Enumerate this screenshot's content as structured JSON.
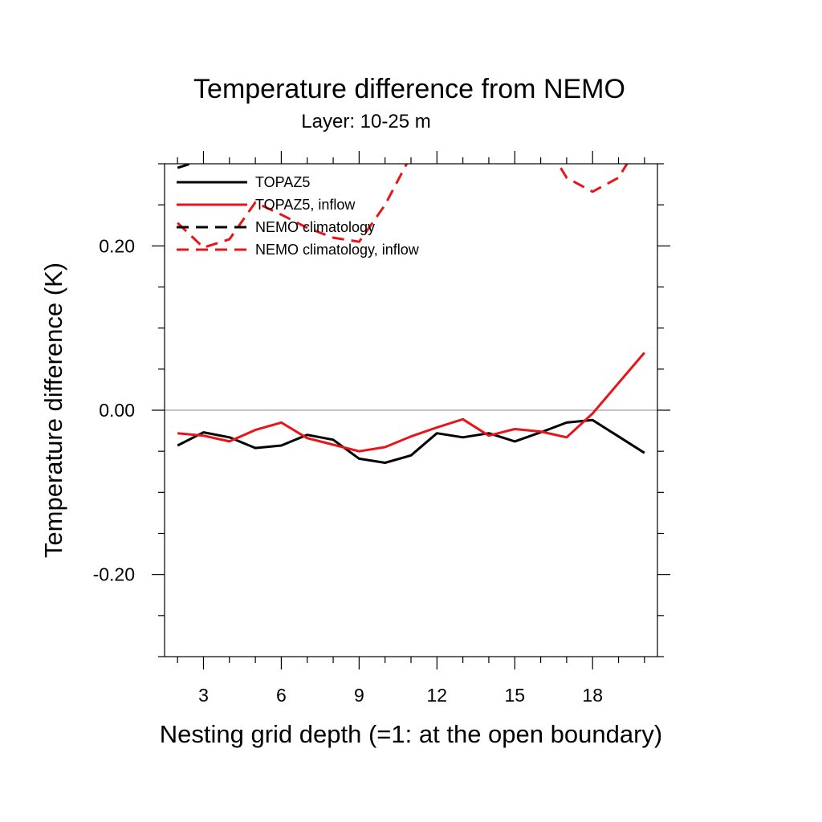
{
  "chart_data": {
    "type": "line",
    "title": "Temperature difference from NEMO",
    "subtitle": "Layer: 10-25 m",
    "xlabel": "Nesting grid depth (=1: at the open boundary)",
    "ylabel": "Temperature difference (K)",
    "xlim": [
      1.5,
      20.5
    ],
    "ylim": [
      -0.3,
      0.3
    ],
    "xticks": [
      3,
      6,
      9,
      12,
      15,
      18
    ],
    "xtick_labels": [
      "3",
      "6",
      "9",
      "12",
      "15",
      "18"
    ],
    "yticks": [
      0.2,
      0.0,
      -0.2
    ],
    "ytick_labels": [
      "0.20",
      "0.00",
      "-0.20"
    ],
    "zero_line": true,
    "legend_position": "top-left",
    "x": [
      2,
      3,
      4,
      5,
      6,
      7,
      8,
      9,
      10,
      11,
      12,
      13,
      14,
      15,
      16,
      17,
      18,
      19,
      20
    ],
    "series": [
      {
        "name": "TOPAZ5",
        "color": "#000000",
        "dash": "solid",
        "values": [
          -0.043,
          -0.027,
          -0.033,
          -0.046,
          -0.043,
          -0.03,
          -0.036,
          -0.059,
          -0.064,
          -0.055,
          -0.028,
          -0.033,
          -0.028,
          -0.038,
          -0.027,
          -0.015,
          -0.012,
          -0.032,
          -0.052
        ]
      },
      {
        "name": "TOPAZ5, inflow",
        "color": "#e8141a",
        "dash": "solid",
        "values": [
          -0.028,
          -0.031,
          -0.038,
          -0.024,
          -0.015,
          -0.034,
          -0.042,
          -0.05,
          -0.045,
          -0.032,
          -0.021,
          -0.011,
          -0.031,
          -0.023,
          -0.026,
          -0.033,
          -0.004,
          0.033,
          0.07
        ]
      },
      {
        "name": "NEMO climatology",
        "color": "#000000",
        "dash": "dashed",
        "values": [
          0.295,
          0.305,
          null,
          null,
          null,
          null,
          null,
          null,
          null,
          null,
          null,
          null,
          null,
          null,
          null,
          null,
          null,
          null,
          null
        ]
      },
      {
        "name": "NEMO climatology, inflow",
        "color": "#e8141a",
        "dash": "dashed",
        "values": [
          0.228,
          0.198,
          0.208,
          0.253,
          0.238,
          0.222,
          0.21,
          0.205,
          0.25,
          0.31,
          null,
          null,
          null,
          null,
          0.335,
          0.283,
          0.266,
          0.283,
          0.335
        ]
      }
    ]
  }
}
